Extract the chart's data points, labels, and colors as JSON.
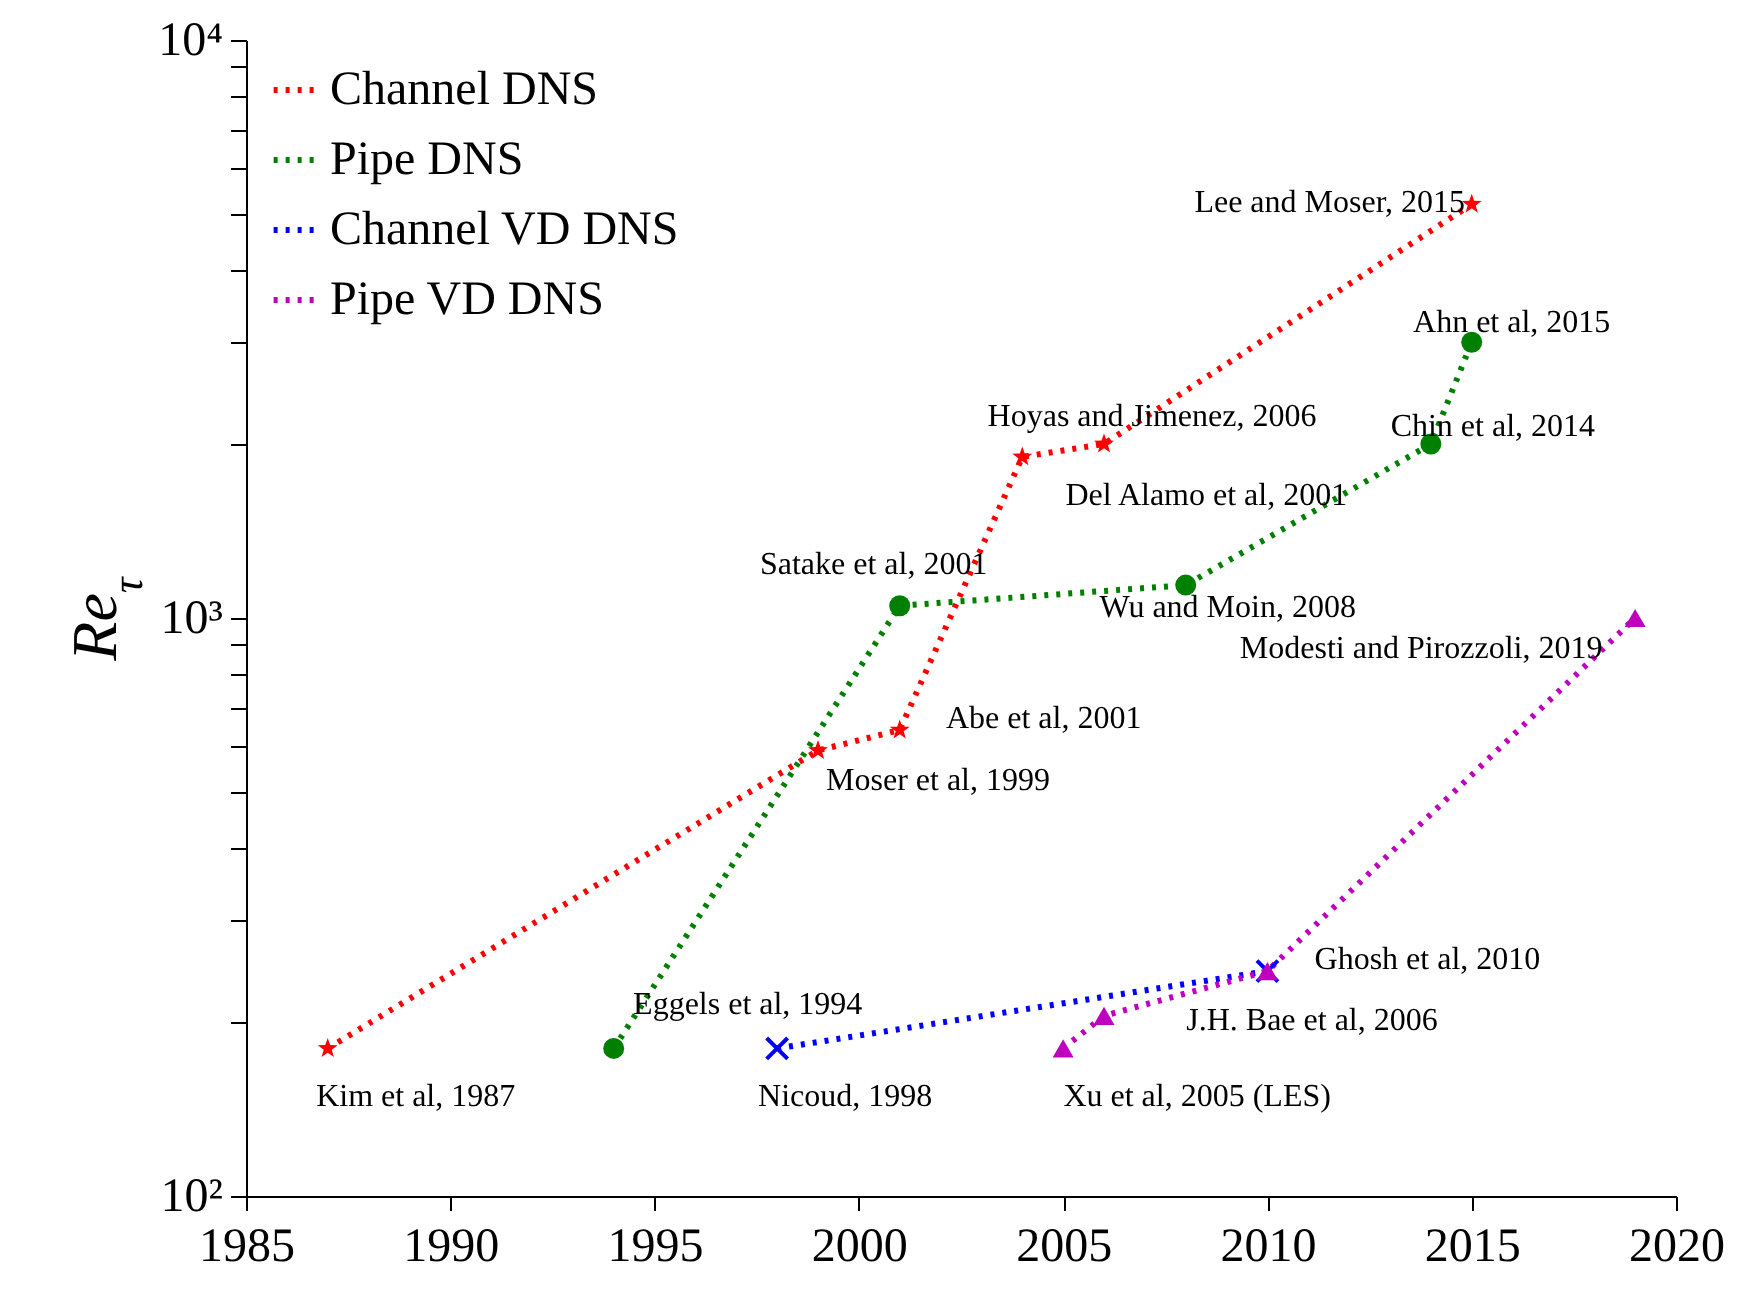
{
  "chart_data": {
    "type": "line",
    "ylabel": "Re$_{τ}$",
    "log": "y",
    "grid": false,
    "legend": "top left",
    "line_style": "dotted",
    "xlim": [
      1985,
      2020
    ],
    "xticks": [
      1985,
      1990,
      1995,
      2000,
      2005,
      2010,
      2015,
      2020
    ],
    "ylim": [
      100,
      10000
    ],
    "yticks": [
      {
        "value": 100,
        "label": "10²"
      },
      {
        "value": 200,
        "label": null
      },
      {
        "value": 300,
        "label": null
      },
      {
        "value": 400,
        "label": null
      },
      {
        "value": 500,
        "label": null
      },
      {
        "value": 600,
        "label": null
      },
      {
        "value": 700,
        "label": null
      },
      {
        "value": 800,
        "label": null
      },
      {
        "value": 900,
        "label": null
      },
      {
        "value": 1000,
        "label": "10³"
      },
      {
        "value": 2000,
        "label": null
      },
      {
        "value": 3000,
        "label": null
      },
      {
        "value": 4000,
        "label": null
      },
      {
        "value": 5000,
        "label": null
      },
      {
        "value": 6000,
        "label": null
      },
      {
        "value": 7000,
        "label": null
      },
      {
        "value": 8000,
        "label": null
      },
      {
        "value": 9000,
        "label": null
      },
      {
        "value": 10000,
        "label": "10⁴"
      }
    ],
    "series": [
      {
        "name": "Channel DNS",
        "color": "#ff0000",
        "marker": "star",
        "x": [
          1987,
          1999,
          2001,
          2004,
          2006,
          2015
        ],
        "values": [
          180,
          590,
          640,
          1900,
          2000,
          5200
        ]
      },
      {
        "name": "Pipe DNS",
        "color": "#008000",
        "marker": "circle",
        "x": [
          1994,
          2001,
          2008,
          2014,
          2015
        ],
        "values": [
          180,
          1050,
          1140,
          2000,
          3000
        ]
      },
      {
        "name": "Channel VD DNS",
        "color": "#0000ff",
        "marker": "cross",
        "x": [
          1998,
          2010
        ],
        "values": [
          180,
          245
        ]
      },
      {
        "name": "Pipe VD DNS",
        "color": "#bf00bf",
        "marker": "triangle",
        "x": [
          2005,
          2006,
          2010,
          2019
        ],
        "values": [
          180,
          205,
          245,
          1000
        ]
      }
    ],
    "annotations": [
      {
        "text": "Kim et al, 1987",
        "x": 1987,
        "y": 180
      },
      {
        "text": "Eggels et al, 1994",
        "x": 1994,
        "y": 180
      },
      {
        "text": "Nicoud, 1998",
        "x": 1998,
        "y": 180
      },
      {
        "text": "Xu et al, 2005 (LES)",
        "x": 2005,
        "y": 180
      },
      {
        "text": "J.H. Bae et al, 2006",
        "x": 2006,
        "y": 205
      },
      {
        "text": "Ghosh et al, 2010",
        "x": 2010,
        "y": 245
      },
      {
        "text": "Moser et al, 1999",
        "x": 1999,
        "y": 590
      },
      {
        "text": "Abe et al, 2001",
        "x": 2001,
        "y": 640
      },
      {
        "text": "Satake et al, 2001",
        "x": 2001,
        "y": 1050
      },
      {
        "text": "Wu and Moin, 2008",
        "x": 2008,
        "y": 1140
      },
      {
        "text": "Modesti and Pirozzoli, 2019",
        "x": 2019,
        "y": 1000
      },
      {
        "text": "Del Alamo et al, 2001",
        "x": 2004,
        "y": 1900
      },
      {
        "text": "Hoyas and Jimenez, 2006",
        "x": 2006,
        "y": 2000
      },
      {
        "text": "Chin et al, 2014",
        "x": 2014,
        "y": 2000
      },
      {
        "text": "Ahn et al, 2015",
        "x": 2015,
        "y": 3000
      },
      {
        "text": "Lee and Moser, 2015",
        "x": 2015,
        "y": 5200
      }
    ]
  }
}
